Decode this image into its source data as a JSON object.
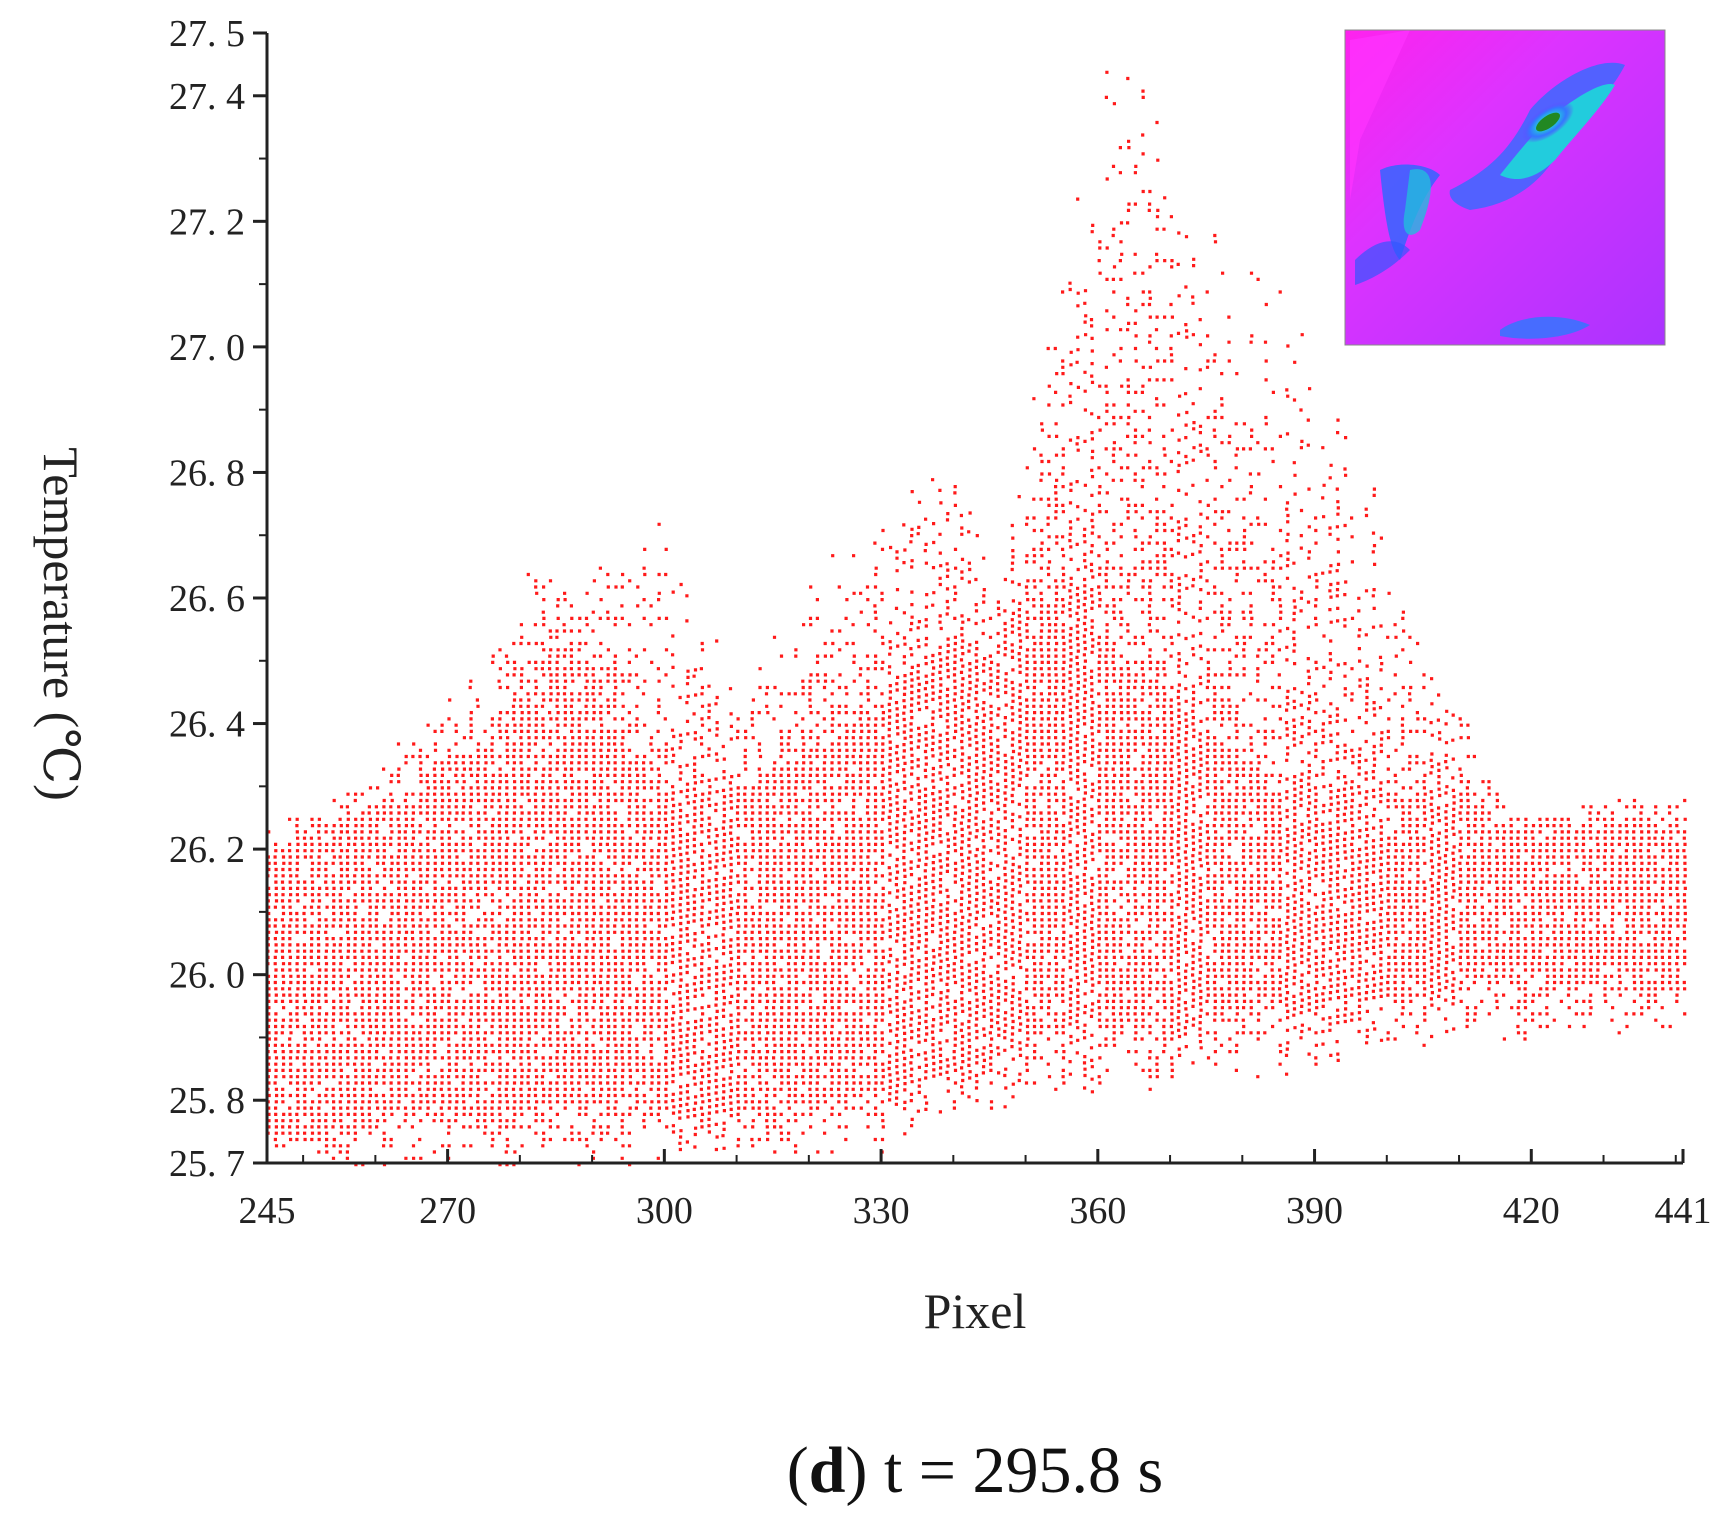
{
  "chart_data": {
    "type": "scatter",
    "title": "",
    "xlabel": "Pixel",
    "ylabel": "Temperature (℃)",
    "xlim": [
      245,
      441
    ],
    "ylim": [
      25.7,
      27.5
    ],
    "x_ticks": [
      "245",
      "270",
      "300",
      "330",
      "360",
      "390",
      "420",
      "441"
    ],
    "y_ticks": [
      "25. 7",
      "25. 8",
      "26. 0",
      "26. 2",
      "26. 4",
      "26. 6",
      "26. 8",
      "27. 0",
      "27. 2",
      "27. 4",
      "27. 5"
    ],
    "grid": false,
    "legend": "none",
    "series": [
      {
        "color": "#ff1a1a",
        "envelope": {
          "x": [
            245,
            255,
            265,
            270,
            275,
            280,
            285,
            290,
            295,
            300,
            310,
            320,
            330,
            340,
            345,
            350,
            355,
            360,
            365,
            370,
            375,
            380,
            385,
            390,
            395,
            400,
            405,
            410,
            415,
            420,
            430,
            441
          ],
          "upper": [
            26.25,
            26.3,
            26.4,
            26.45,
            26.5,
            26.65,
            26.65,
            26.65,
            26.7,
            26.75,
            26.45,
            26.65,
            26.75,
            26.85,
            26.65,
            26.9,
            27.1,
            27.45,
            27.45,
            27.35,
            27.2,
            27.15,
            27.1,
            27.0,
            26.9,
            26.75,
            26.55,
            26.45,
            26.3,
            26.25,
            26.3,
            26.3
          ],
          "dense_upper": [
            26.2,
            26.25,
            26.3,
            26.35,
            26.35,
            26.45,
            26.55,
            26.5,
            26.35,
            26.3,
            26.3,
            26.35,
            26.45,
            26.55,
            26.5,
            26.6,
            26.65,
            26.55,
            26.5,
            26.45,
            26.4,
            26.35,
            26.3,
            26.3,
            26.3,
            26.3,
            26.28,
            26.28,
            26.25,
            26.25,
            26.25,
            26.25
          ],
          "dense_lower": [
            25.75,
            25.75,
            25.78,
            25.78,
            25.78,
            25.78,
            25.8,
            25.8,
            25.8,
            25.78,
            25.78,
            25.8,
            25.82,
            25.85,
            25.87,
            25.9,
            25.92,
            25.92,
            25.92,
            25.92,
            25.95,
            25.95,
            25.95,
            25.95,
            25.97,
            25.97,
            25.97,
            26.0,
            26.0,
            26.0,
            25.98,
            25.98
          ],
          "lower": [
            25.7,
            25.7,
            25.7,
            25.7,
            25.7,
            25.7,
            25.7,
            25.7,
            25.7,
            25.7,
            25.72,
            25.72,
            25.72,
            25.75,
            25.77,
            25.8,
            25.8,
            25.82,
            25.82,
            25.82,
            25.84,
            25.84,
            25.84,
            25.86,
            25.87,
            25.88,
            25.88,
            25.9,
            25.9,
            25.9,
            25.9,
            25.9
          ]
        }
      }
    ]
  },
  "caption": {
    "label": "d",
    "text": " t = 295.8 s"
  }
}
